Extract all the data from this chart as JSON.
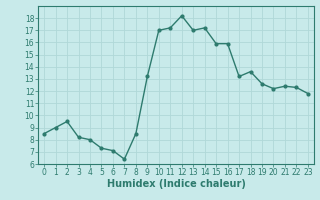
{
  "x": [
    0,
    1,
    2,
    3,
    4,
    5,
    6,
    7,
    8,
    9,
    10,
    11,
    12,
    13,
    14,
    15,
    16,
    17,
    18,
    19,
    20,
    21,
    22,
    23
  ],
  "y": [
    8.5,
    9.0,
    9.5,
    8.2,
    8.0,
    7.3,
    7.1,
    6.4,
    8.5,
    13.2,
    17.0,
    17.2,
    18.2,
    17.0,
    17.2,
    15.9,
    15.9,
    13.2,
    13.6,
    12.6,
    12.2,
    12.4,
    12.3,
    11.8
  ],
  "line_color": "#2e7b6e",
  "marker": "o",
  "marker_size": 2,
  "line_width": 1.0,
  "xlabel": "Humidex (Indice chaleur)",
  "xlim": [
    -0.5,
    23.5
  ],
  "ylim": [
    6,
    19
  ],
  "yticks": [
    6,
    7,
    8,
    9,
    10,
    11,
    12,
    13,
    14,
    15,
    16,
    17,
    18
  ],
  "xticks": [
    0,
    1,
    2,
    3,
    4,
    5,
    6,
    7,
    8,
    9,
    10,
    11,
    12,
    13,
    14,
    15,
    16,
    17,
    18,
    19,
    20,
    21,
    22,
    23
  ],
  "bg_color": "#c8eaea",
  "grid_color": "#b0d8d8",
  "tick_fontsize": 5.5,
  "xlabel_fontsize": 7,
  "label_color": "#2e7b6e"
}
